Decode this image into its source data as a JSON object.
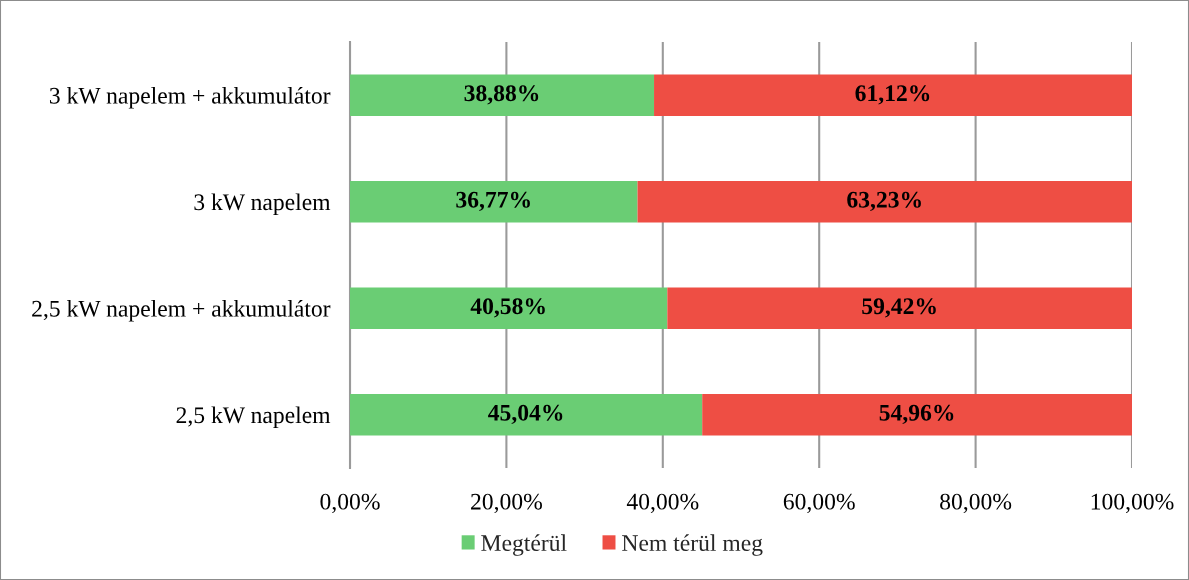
{
  "chart_data": {
    "type": "bar",
    "orientation": "horizontal",
    "stacked": true,
    "categories": [
      "3 kW napelem + akkumulátor",
      "3 kW napelem",
      "2,5 kW napelem + akkumulátor",
      "2,5 kW napelem"
    ],
    "series": [
      {
        "name": "Megtérül",
        "color": "#6acd74",
        "values": [
          38.88,
          36.77,
          40.58,
          45.04
        ],
        "value_labels": [
          "38,88%",
          "36,77%",
          "40,58%",
          "45,04%"
        ]
      },
      {
        "name": "Nem térül meg",
        "color": "#ee4e44",
        "values": [
          61.12,
          63.23,
          59.42,
          54.96
        ],
        "value_labels": [
          "61,12%",
          "63,23%",
          "59,42%",
          "54,96%"
        ]
      }
    ],
    "xlim": [
      0,
      100
    ],
    "xticks": [
      {
        "value": 0,
        "label": "0,00%"
      },
      {
        "value": 20,
        "label": "20,00%"
      },
      {
        "value": 40,
        "label": "40,00%"
      },
      {
        "value": 60,
        "label": "60,00%"
      },
      {
        "value": 80,
        "label": "80,00%"
      },
      {
        "value": 100,
        "label": "100,00%"
      }
    ],
    "grid": "x",
    "legend": "bottom"
  }
}
